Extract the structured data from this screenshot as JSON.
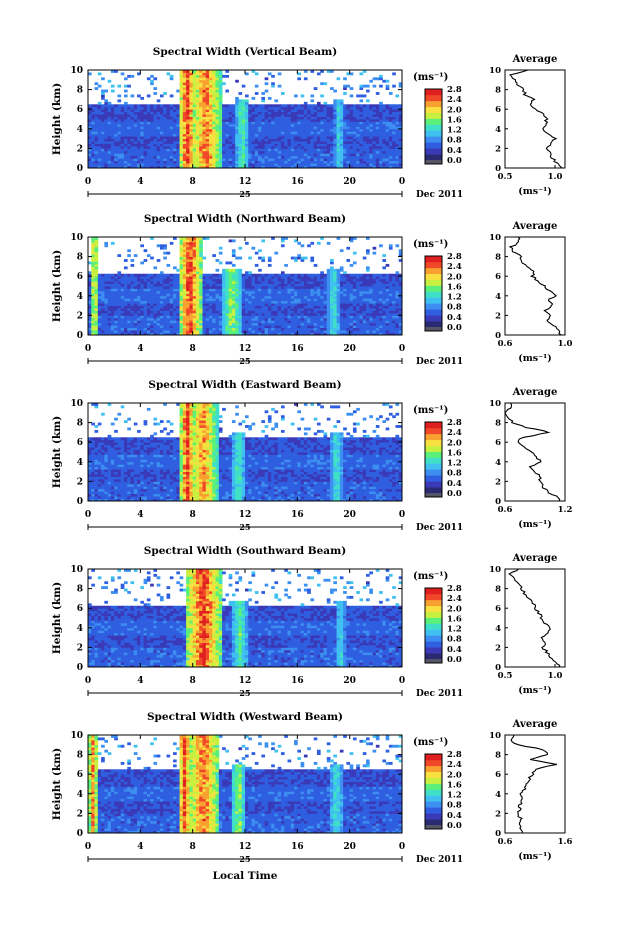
{
  "figure": {
    "xlabel": "Local Time",
    "date_label": "Dec 2011",
    "day_label": "25",
    "colorbar_unit": "(ms⁻¹)",
    "average_title": "Average",
    "average_xlabel": "(ms⁻¹)"
  },
  "colorscale": {
    "colors": [
      "#2a2a72",
      "#3a3ab8",
      "#2f5fe0",
      "#3c8ff0",
      "#3fc0f0",
      "#40e0c8",
      "#5af07a",
      "#c8f040",
      "#f8e040",
      "#f8a030",
      "#f04828",
      "#e02020"
    ],
    "below_color": "#555566"
  },
  "chart_data": [
    {
      "type": "heatmap",
      "title": "Spectral Width (Vertical Beam)",
      "ylabel": "Height (km)",
      "xlim": [
        0,
        24
      ],
      "ylim": [
        0,
        10
      ],
      "xticks": [
        "0",
        "4",
        "8",
        "12",
        "16",
        "20",
        "0"
      ],
      "yticks": [
        "0",
        "2",
        "4",
        "6",
        "8",
        "10"
      ],
      "colorbar": {
        "min": 0.0,
        "max": 2.8,
        "ticks": [
          "0.0",
          "0.4",
          "0.8",
          "1.2",
          "1.6",
          "2.0",
          "2.4",
          "2.8"
        ]
      },
      "data_top_km": 6.5,
      "events": [
        {
          "t": 7.6,
          "w": 0.7,
          "v": 2.8
        },
        {
          "t": 9.0,
          "w": 1.2,
          "v": 2.6
        },
        {
          "t": 11.8,
          "w": 0.5,
          "v": 1.6
        },
        {
          "t": 19.2,
          "w": 0.4,
          "v": 1.3
        }
      ],
      "average": {
        "xlim": [
          0.5,
          1.1
        ],
        "xticks": [
          "0.5",
          "1.0"
        ],
        "yticks": [
          "0",
          "2",
          "4",
          "6",
          "8",
          "10"
        ],
        "height": [
          0,
          0.5,
          1,
          1.5,
          2,
          2.5,
          3,
          3.5,
          4,
          4.5,
          5,
          5.5,
          6,
          6.5,
          7,
          7.5,
          8,
          8.5,
          9,
          9.5,
          10
        ],
        "value": [
          1.08,
          1.02,
          0.98,
          0.95,
          0.92,
          0.97,
          1.0,
          0.93,
          0.88,
          0.9,
          0.92,
          0.88,
          0.8,
          0.75,
          0.8,
          0.7,
          0.68,
          0.62,
          0.6,
          0.55,
          0.72
        ]
      }
    },
    {
      "type": "heatmap",
      "title": "Spectral Width (Northward Beam)",
      "ylabel": "Height (km)",
      "xlim": [
        0,
        24
      ],
      "ylim": [
        0,
        10
      ],
      "xticks": [
        "0",
        "4",
        "8",
        "12",
        "16",
        "20",
        "0"
      ],
      "yticks": [
        "0",
        "2",
        "4",
        "6",
        "8",
        "10"
      ],
      "colorbar": {
        "min": 0.0,
        "max": 2.8,
        "ticks": [
          "0.0",
          "0.4",
          "0.8",
          "1.2",
          "1.6",
          "2.0",
          "2.4",
          "2.8"
        ]
      },
      "data_top_km": 6.3,
      "events": [
        {
          "t": 0.5,
          "w": 0.3,
          "v": 2.2
        },
        {
          "t": 7.8,
          "w": 0.9,
          "v": 2.8
        },
        {
          "t": 11.0,
          "w": 0.8,
          "v": 1.8
        },
        {
          "t": 18.8,
          "w": 0.5,
          "v": 1.4
        }
      ],
      "average": {
        "xlim": [
          0.6,
          1.0
        ],
        "xticks": [
          "0.6",
          "1.0"
        ],
        "yticks": [
          "0",
          "2",
          "4",
          "6",
          "8",
          "10"
        ],
        "height": [
          0,
          0.5,
          1,
          1.5,
          2,
          2.5,
          3,
          3.5,
          4,
          4.5,
          5,
          5.5,
          6,
          6.5,
          7,
          7.5,
          8,
          8.5,
          9,
          9.5,
          10
        ],
        "value": [
          0.98,
          0.95,
          0.92,
          0.88,
          0.9,
          0.86,
          0.92,
          0.88,
          0.95,
          0.9,
          0.86,
          0.82,
          0.78,
          0.8,
          0.74,
          0.72,
          0.7,
          0.66,
          0.64,
          0.7,
          0.68
        ]
      }
    },
    {
      "type": "heatmap",
      "title": "Spectral Width (Eastward Beam)",
      "ylabel": "Height (km)",
      "xlim": [
        0,
        24
      ],
      "ylim": [
        0,
        10
      ],
      "xticks": [
        "0",
        "4",
        "8",
        "12",
        "16",
        "20",
        "0"
      ],
      "yticks": [
        "0",
        "2",
        "4",
        "6",
        "8",
        "10"
      ],
      "colorbar": {
        "min": 0.0,
        "max": 2.8,
        "ticks": [
          "0.0",
          "0.4",
          "0.8",
          "1.2",
          "1.6",
          "2.0",
          "2.4",
          "2.8"
        ]
      },
      "data_top_km": 6.4,
      "events": [
        {
          "t": 7.6,
          "w": 0.6,
          "v": 2.8
        },
        {
          "t": 8.8,
          "w": 1.1,
          "v": 2.5
        },
        {
          "t": 11.5,
          "w": 0.6,
          "v": 1.5
        },
        {
          "t": 19.0,
          "w": 0.5,
          "v": 1.4
        }
      ],
      "average": {
        "xlim": [
          0.6,
          1.2
        ],
        "xticks": [
          "0.6",
          "1.2"
        ],
        "yticks": [
          "0",
          "2",
          "4",
          "6",
          "8",
          "10"
        ],
        "height": [
          0,
          0.5,
          1,
          1.5,
          2,
          2.5,
          3,
          3.5,
          4,
          4.5,
          5,
          5.5,
          6,
          6.5,
          7,
          7.5,
          8,
          8.5,
          9,
          9.5,
          10
        ],
        "value": [
          1.15,
          1.1,
          1.02,
          0.98,
          0.94,
          0.96,
          0.9,
          0.85,
          0.95,
          0.92,
          0.88,
          0.8,
          0.72,
          0.78,
          1.05,
          0.82,
          0.68,
          0.62,
          0.58,
          0.66,
          0.64
        ]
      }
    },
    {
      "type": "heatmap",
      "title": "Spectral Width (Southward Beam)",
      "ylabel": "Height (km)",
      "xlim": [
        0,
        24
      ],
      "ylim": [
        0,
        10
      ],
      "xticks": [
        "0",
        "4",
        "8",
        "12",
        "16",
        "20",
        "0"
      ],
      "yticks": [
        "0",
        "2",
        "4",
        "6",
        "8",
        "10"
      ],
      "colorbar": {
        "min": 0.0,
        "max": 2.8,
        "ticks": [
          "0.0",
          "0.4",
          "0.8",
          "1.2",
          "1.6",
          "2.0",
          "2.4",
          "2.8"
        ]
      },
      "data_top_km": 6.3,
      "events": [
        {
          "t": 8.8,
          "w": 1.4,
          "v": 2.8
        },
        {
          "t": 11.6,
          "w": 0.6,
          "v": 1.6
        },
        {
          "t": 19.3,
          "w": 0.4,
          "v": 1.3
        }
      ],
      "average": {
        "xlim": [
          0.5,
          1.1
        ],
        "xticks": [
          "0.5",
          "1.0"
        ],
        "yticks": [
          "0",
          "2",
          "4",
          "6",
          "8",
          "10"
        ],
        "height": [
          0,
          0.5,
          1,
          1.5,
          2,
          2.5,
          3,
          3.5,
          4,
          4.5,
          5,
          5.5,
          6,
          6.5,
          7,
          7.5,
          8,
          8.5,
          9,
          9.5,
          10
        ],
        "value": [
          1.05,
          1.02,
          0.96,
          0.92,
          0.88,
          0.9,
          0.86,
          0.92,
          0.95,
          0.9,
          0.86,
          0.84,
          0.8,
          0.78,
          0.74,
          0.7,
          0.66,
          0.64,
          0.6,
          0.56,
          0.62
        ]
      }
    },
    {
      "type": "heatmap",
      "title": "Spectral Width (Westward Beam)",
      "ylabel": "Height (km)",
      "xlim": [
        0,
        24
      ],
      "ylim": [
        0,
        10
      ],
      "xticks": [
        "0",
        "4",
        "8",
        "12",
        "16",
        "20",
        "0"
      ],
      "yticks": [
        "0",
        "2",
        "4",
        "6",
        "8",
        "10"
      ],
      "colorbar": {
        "min": 0.0,
        "max": 2.8,
        "ticks": [
          "0.0",
          "0.4",
          "0.8",
          "1.2",
          "1.6",
          "2.0",
          "2.4",
          "2.8"
        ]
      },
      "data_top_km": 6.5,
      "events": [
        {
          "t": 0.4,
          "w": 0.4,
          "v": 2.5
        },
        {
          "t": 7.4,
          "w": 0.5,
          "v": 2.8
        },
        {
          "t": 8.8,
          "w": 1.3,
          "v": 2.6
        },
        {
          "t": 11.5,
          "w": 0.6,
          "v": 1.8
        },
        {
          "t": 19.0,
          "w": 0.5,
          "v": 1.4
        }
      ],
      "average": {
        "xlim": [
          0.6,
          1.6
        ],
        "xticks": [
          "0.6",
          "1.6"
        ],
        "yticks": [
          "0",
          "2",
          "4",
          "6",
          "8",
          "10"
        ],
        "height": [
          0,
          0.5,
          1,
          1.5,
          2,
          2.5,
          3,
          3.5,
          4,
          4.5,
          5,
          5.5,
          6,
          6.5,
          7,
          7.5,
          8,
          8.5,
          9,
          9.5,
          10
        ],
        "value": [
          0.9,
          0.86,
          0.84,
          0.86,
          0.82,
          0.84,
          0.86,
          0.9,
          0.88,
          0.92,
          0.95,
          1.0,
          1.05,
          1.1,
          1.45,
          1.05,
          1.3,
          1.25,
          0.8,
          0.7,
          0.72
        ]
      }
    }
  ]
}
